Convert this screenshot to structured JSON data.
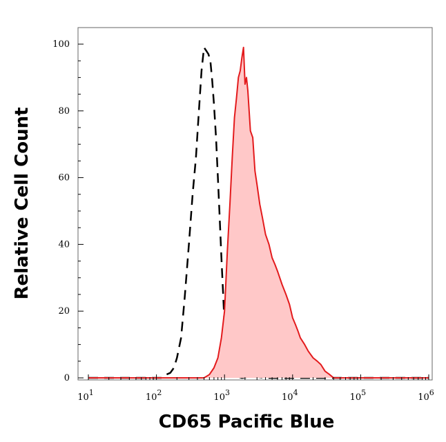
{
  "chart_data": {
    "type": "area",
    "xlabel": "CD65 Pacific Blue",
    "ylabel": "Relative Cell Count",
    "x_scale": "log",
    "xlim": [
      10,
      1000000
    ],
    "ylim": [
      0,
      100
    ],
    "x_ticks": [
      {
        "value": 10,
        "base": "10",
        "exp": "1"
      },
      {
        "value": 100,
        "base": "10",
        "exp": "2"
      },
      {
        "value": 1000,
        "base": "10",
        "exp": "3"
      },
      {
        "value": 10000,
        "base": "10",
        "exp": "4"
      },
      {
        "value": 100000,
        "base": "10",
        "exp": "5"
      },
      {
        "value": 1000000,
        "base": "10",
        "exp": "6"
      }
    ],
    "y_ticks": [
      0,
      20,
      40,
      60,
      80,
      100
    ],
    "grid": false,
    "series": [
      {
        "style": "dashed",
        "color": "#000000",
        "fill": "none",
        "x": [
          10,
          120,
          140,
          160,
          180,
          200,
          230,
          260,
          300,
          340,
          380,
          420,
          460,
          500,
          540,
          580,
          620,
          660,
          700,
          750,
          800,
          850,
          900,
          950,
          1000,
          1080,
          1150,
          1250,
          1350,
          1500,
          1800,
          2500,
          4000,
          10000,
          100000,
          1000000
        ],
        "y": [
          0,
          0,
          1,
          1.5,
          3,
          6,
          12,
          24,
          40,
          55,
          66,
          80,
          92,
          99,
          98,
          97,
          95,
          89,
          82,
          72,
          60,
          48,
          36,
          26,
          16,
          10,
          6,
          3,
          1.5,
          0.5,
          0,
          0.5,
          0,
          0,
          0,
          0
        ]
      },
      {
        "style": "solid",
        "color": "#e31a1c",
        "fill": "#ffc8c8",
        "x": [
          10,
          500,
          600,
          700,
          800,
          900,
          1000,
          1100,
          1200,
          1300,
          1400,
          1500,
          1600,
          1700,
          1800,
          1900,
          2000,
          2100,
          2200,
          2400,
          2600,
          2800,
          3000,
          3300,
          3600,
          4000,
          4500,
          5000,
          5500,
          6000,
          7000,
          8000,
          9000,
          10000,
          11000,
          12000,
          13000,
          15000,
          17000,
          20000,
          23000,
          26000,
          30000,
          35000,
          40000,
          50000,
          100000,
          1000000
        ],
        "y": [
          0,
          0,
          1,
          3,
          6,
          12,
          20,
          38,
          52,
          66,
          78,
          84,
          90,
          92,
          96,
          99,
          88,
          90,
          86,
          74,
          72,
          62,
          58,
          52,
          48,
          43,
          40,
          36,
          34,
          32,
          28,
          25,
          22,
          18,
          16,
          14,
          12,
          10,
          8,
          6,
          5,
          4,
          2,
          1,
          0,
          0,
          0,
          0
        ]
      }
    ]
  }
}
